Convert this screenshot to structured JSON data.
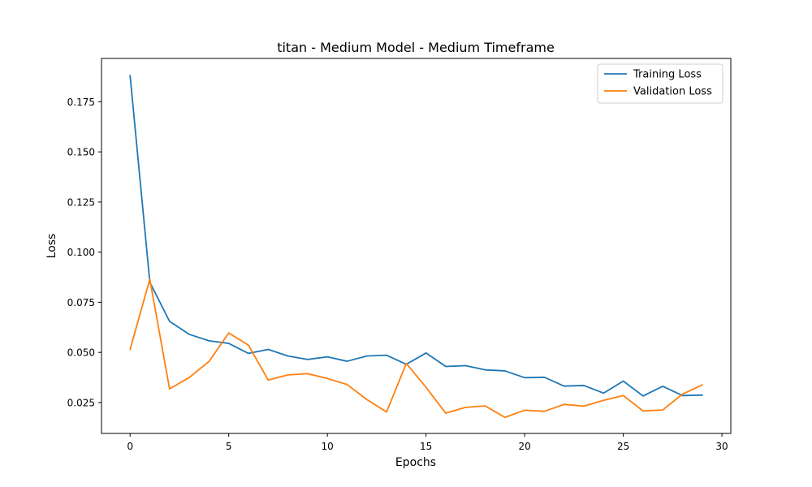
{
  "chart_data": {
    "type": "line",
    "title": "titan - Medium Model - Medium Timeframe",
    "xlabel": "Epochs",
    "ylabel": "Loss",
    "xlim": [
      -1.45,
      30.45
    ],
    "ylim": [
      0.0096,
      0.1966
    ],
    "xticks": [
      0,
      5,
      10,
      15,
      20,
      25,
      30
    ],
    "xtick_labels": [
      "0",
      "5",
      "10",
      "15",
      "20",
      "25",
      "30"
    ],
    "yticks": [
      0.025,
      0.05,
      0.075,
      0.1,
      0.125,
      0.15,
      0.175
    ],
    "ytick_labels": [
      "0.025",
      "0.050",
      "0.075",
      "0.100",
      "0.125",
      "0.150",
      "0.175"
    ],
    "legend_position": "top-right",
    "x": [
      0,
      1,
      2,
      3,
      4,
      5,
      6,
      7,
      8,
      9,
      10,
      11,
      12,
      13,
      14,
      15,
      16,
      17,
      18,
      19,
      20,
      21,
      22,
      23,
      24,
      25,
      26,
      27,
      28,
      29
    ],
    "series": [
      {
        "name": "Training Loss",
        "color": "#1f77b4",
        "values": [
          0.188,
          0.085,
          0.0655,
          0.059,
          0.0558,
          0.0545,
          0.0495,
          0.0515,
          0.0482,
          0.0465,
          0.0478,
          0.0456,
          0.0482,
          0.0486,
          0.0441,
          0.0497,
          0.043,
          0.0434,
          0.0413,
          0.0408,
          0.0374,
          0.0376,
          0.0332,
          0.0335,
          0.0297,
          0.0357,
          0.0283,
          0.0331,
          0.0285,
          0.0287
        ]
      },
      {
        "name": "Validation Loss",
        "color": "#ff7f0e",
        "values": [
          0.0515,
          0.0865,
          0.0318,
          0.0375,
          0.0455,
          0.0597,
          0.0536,
          0.0362,
          0.0388,
          0.0394,
          0.037,
          0.034,
          0.0265,
          0.0203,
          0.0445,
          0.0326,
          0.0197,
          0.0226,
          0.0233,
          0.0176,
          0.0212,
          0.0206,
          0.0241,
          0.0232,
          0.0261,
          0.0285,
          0.0208,
          0.0213,
          0.0292,
          0.0338
        ]
      }
    ]
  }
}
